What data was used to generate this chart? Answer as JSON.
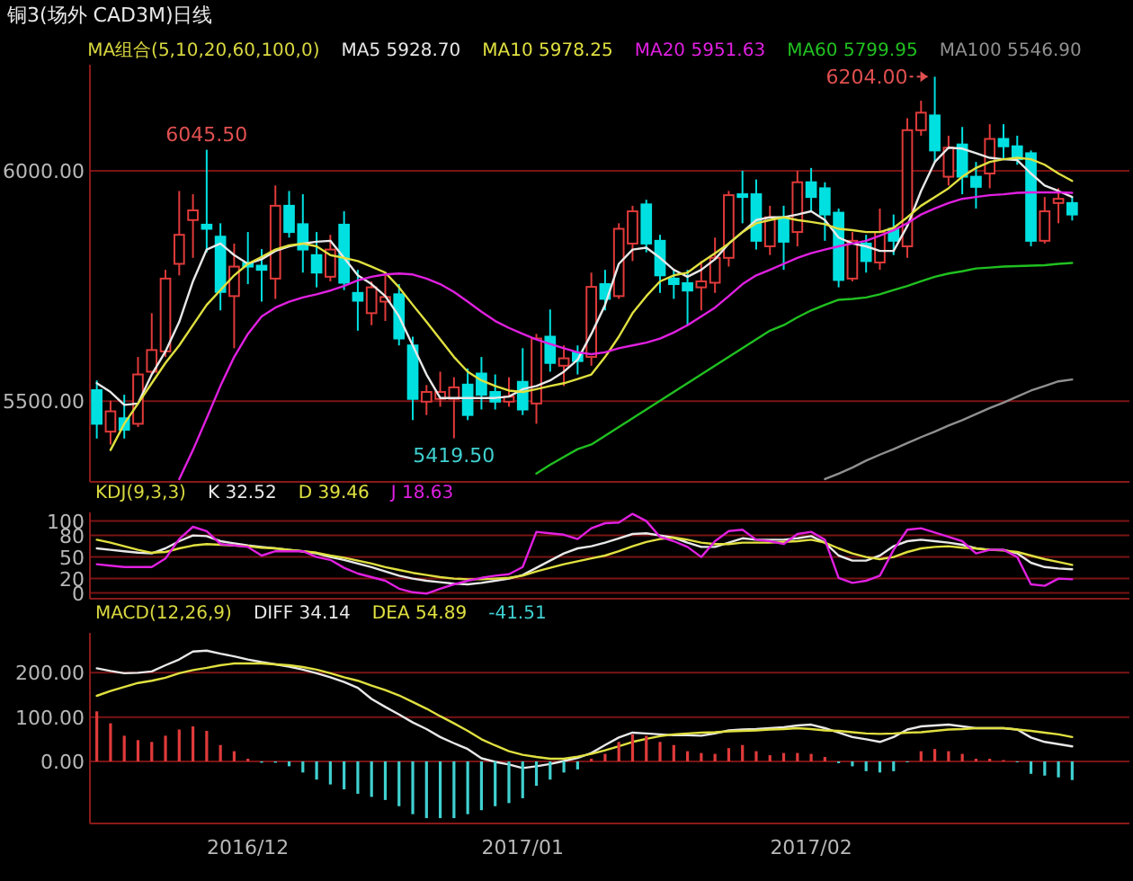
{
  "chart_data": [
    {
      "type": "candlestick",
      "title": "铜3(场外 CAD3M)日线",
      "legend_title": "MA组合(5,10,20,60,100,0)",
      "legend": "top",
      "grid": "y",
      "tick_labels": "y",
      "ylim": [
        5325,
        6230
      ],
      "yticks": [
        {
          "value": 5500,
          "label": "5500.00"
        },
        {
          "value": 6000,
          "label": "6000.00"
        }
      ],
      "categories": [
        null,
        null,
        null,
        null,
        null,
        null,
        null,
        null,
        null,
        null,
        null,
        null,
        null,
        null,
        null,
        null,
        null,
        null,
        null,
        null,
        null,
        null,
        null,
        null,
        null,
        null,
        null,
        null,
        null,
        null,
        null,
        null,
        null,
        null,
        null,
        null,
        null,
        null,
        null,
        null,
        null,
        null,
        null,
        null,
        null,
        null,
        null,
        null,
        null,
        null,
        null,
        null,
        null,
        null,
        null,
        null,
        null,
        null,
        null,
        null,
        null,
        null,
        null,
        null,
        null,
        null,
        null,
        null,
        null,
        null,
        null,
        null
      ],
      "ohlc": [
        [
          5524,
          5545,
          5419,
          5451
        ],
        [
          5434,
          5501,
          5406,
          5478
        ],
        [
          5463,
          5514,
          5419,
          5438
        ],
        [
          5451,
          5596,
          5444,
          5558
        ],
        [
          5564,
          5691,
          5558,
          5611
        ],
        [
          5608,
          5785,
          5596,
          5766
        ],
        [
          5798,
          5956,
          5773,
          5861
        ],
        [
          5893,
          5949,
          5811,
          5914
        ],
        [
          5883,
          6045.5,
          5823,
          5874
        ],
        [
          5857,
          5886,
          5697,
          5737
        ],
        [
          5728,
          5842,
          5615,
          5792
        ],
        [
          5800,
          5867,
          5754,
          5792
        ],
        [
          5794,
          5830,
          5716,
          5785
        ],
        [
          5766,
          5968,
          5722,
          5924
        ],
        [
          5924,
          5956,
          5855,
          5867
        ],
        [
          5884,
          5949,
          5779,
          5829
        ],
        [
          5817,
          5867,
          5747,
          5779
        ],
        [
          5770,
          5861,
          5760,
          5829
        ],
        [
          5883,
          5912,
          5741,
          5757
        ],
        [
          5735,
          5785,
          5653,
          5718
        ],
        [
          5691,
          5760,
          5665,
          5747
        ],
        [
          5716,
          5773,
          5674,
          5726
        ],
        [
          5732,
          5754,
          5621,
          5636
        ],
        [
          5621,
          5640,
          5459,
          5505
        ],
        [
          5499,
          5535,
          5470,
          5520
        ],
        [
          5505,
          5564,
          5488,
          5520
        ],
        [
          5505,
          5552,
          5419.5,
          5530
        ],
        [
          5536,
          5571,
          5459,
          5470
        ],
        [
          5560,
          5596,
          5482,
          5514
        ],
        [
          5520,
          5558,
          5482,
          5499
        ],
        [
          5499,
          5552,
          5488,
          5510
        ],
        [
          5542,
          5615,
          5470,
          5482
        ],
        [
          5495,
          5646,
          5451,
          5636
        ],
        [
          5640,
          5699,
          5564,
          5583
        ],
        [
          5577,
          5621,
          5533,
          5593
        ],
        [
          5606,
          5621,
          5558,
          5587
        ],
        [
          5596,
          5779,
          5577,
          5748
        ],
        [
          5754,
          5785,
          5697,
          5722
        ],
        [
          5728,
          5886,
          5722,
          5874
        ],
        [
          5842,
          5924,
          5804,
          5912
        ],
        [
          5927,
          5937,
          5823,
          5842
        ],
        [
          5848,
          5861,
          5735,
          5773
        ],
        [
          5766,
          5785,
          5722,
          5754
        ],
        [
          5756,
          5785,
          5665,
          5740
        ],
        [
          5747,
          5804,
          5697,
          5760
        ],
        [
          5757,
          5855,
          5735,
          5811
        ],
        [
          5811,
          5956,
          5792,
          5947
        ],
        [
          5949,
          6000,
          5886,
          5943
        ],
        [
          5949,
          5981,
          5829,
          5848
        ],
        [
          5836,
          5924,
          5817,
          5899
        ],
        [
          5899,
          5924,
          5785,
          5846
        ],
        [
          5867,
          6000,
          5836,
          5975
        ],
        [
          5975,
          6006,
          5912,
          5943
        ],
        [
          5962,
          5975,
          5848,
          5905
        ],
        [
          5909,
          5918,
          5747,
          5763
        ],
        [
          5766,
          5867,
          5760,
          5848
        ],
        [
          5842,
          5861,
          5779,
          5804
        ],
        [
          5801,
          5918,
          5785,
          5867
        ],
        [
          5874,
          5905,
          5817,
          5848
        ],
        [
          5836,
          6114,
          5811,
          6088
        ],
        [
          6088,
          6152,
          6076,
          6126
        ],
        [
          6120,
          6204,
          6019,
          6044
        ],
        [
          5987,
          6076,
          5968,
          6050
        ],
        [
          6057,
          6095,
          5949,
          5987
        ],
        [
          5987,
          6019,
          5918,
          5965
        ],
        [
          5994,
          6101,
          5962,
          6069
        ],
        [
          6069,
          6101,
          6025,
          6053
        ],
        [
          6053,
          6076,
          6013,
          6025
        ],
        [
          6038,
          6044,
          5836,
          5848
        ],
        [
          5848,
          5943,
          5842,
          5912
        ],
        [
          5930,
          5962,
          5886,
          5939
        ],
        [
          5930,
          5943,
          5892,
          5905
        ]
      ],
      "colors": [
        "#00e0e0",
        "#e03a3a",
        "#00e0e0",
        "#e03a3a",
        "#e03a3a",
        "#e03a3a",
        "#e03a3a",
        "#e03a3a",
        "#00e0e0",
        "#00e0e0",
        "#e03a3a",
        "#00e0e0",
        "#00e0e0",
        "#e03a3a",
        "#00e0e0",
        "#00e0e0",
        "#00e0e0",
        "#e03a3a",
        "#00e0e0",
        "#00e0e0",
        "#e03a3a",
        "#e03a3a",
        "#00e0e0",
        "#00e0e0",
        "#e03a3a",
        "#e03a3a",
        "#e03a3a",
        "#00e0e0",
        "#00e0e0",
        "#00e0e0",
        "#e03a3a",
        "#00e0e0",
        "#e03a3a",
        "#00e0e0",
        "#e03a3a",
        "#00e0e0",
        "#e03a3a",
        "#00e0e0",
        "#e03a3a",
        "#e03a3a",
        "#00e0e0",
        "#00e0e0",
        "#00e0e0",
        "#00e0e0",
        "#e03a3a",
        "#e03a3a",
        "#e03a3a",
        "#00e0e0",
        "#00e0e0",
        "#e03a3a",
        "#00e0e0",
        "#e03a3a",
        "#00e0e0",
        "#00e0e0",
        "#00e0e0",
        "#e03a3a",
        "#00e0e0",
        "#e03a3a",
        "#00e0e0",
        "#e03a3a",
        "#e03a3a",
        "#00e0e0",
        "#e03a3a",
        "#00e0e0",
        "#00e0e0",
        "#e03a3a",
        "#00e0e0",
        "#00e0e0",
        "#00e0e0",
        "#e03a3a",
        "#e03a3a",
        "#00e0e0"
      ],
      "series": [
        {
          "type": "line",
          "name": "MA5 5928.70",
          "color": "#e8e8e8",
          "values": [
            5539,
            5520,
            5492,
            5495,
            5558,
            5608,
            5672,
            5760,
            5829,
            5842,
            5817,
            5798,
            5808,
            5826,
            5836,
            5842,
            5846,
            5848,
            5811,
            5773,
            5754,
            5728,
            5684,
            5621,
            5558,
            5507,
            5507,
            5507,
            5507,
            5507,
            5510,
            5526,
            5533,
            5545,
            5564,
            5590,
            5646,
            5709,
            5798,
            5829,
            5833,
            5811,
            5785,
            5770,
            5785,
            5808,
            5842,
            5867,
            5893,
            5899,
            5899,
            5905,
            5912,
            5893,
            5855,
            5842,
            5836,
            5826,
            5826,
            5880,
            5956,
            6019,
            6050,
            6048,
            6038,
            6028,
            6025,
            6023,
            5994,
            5968,
            5956,
            5943
          ]
        },
        {
          "type": "line",
          "name": "MA10 5978.25",
          "color": "#e0e040",
          "values": [
            null,
            5394,
            5451,
            5495,
            5539,
            5583,
            5621,
            5665,
            5709,
            5741,
            5773,
            5798,
            5813,
            5829,
            5838,
            5842,
            5836,
            5817,
            5811,
            5804,
            5792,
            5779,
            5747,
            5709,
            5672,
            5634,
            5596,
            5564,
            5545,
            5533,
            5523,
            5520,
            5526,
            5533,
            5539,
            5548,
            5558,
            5596,
            5640,
            5691,
            5728,
            5760,
            5773,
            5779,
            5801,
            5821,
            5842,
            5867,
            5886,
            5893,
            5899,
            5893,
            5889,
            5884,
            5874,
            5871,
            5867,
            5867,
            5876,
            5899,
            5924,
            5943,
            5962,
            5987,
            6006,
            6019,
            6025,
            6028,
            6025,
            6013,
            5994,
            5978
          ]
        },
        {
          "type": "line",
          "name": "MA20 5951.63",
          "color": "#e020e0",
          "values": [
            null,
            null,
            null,
            null,
            null,
            null,
            5331,
            5394,
            5463,
            5533,
            5596,
            5646,
            5684,
            5703,
            5716,
            5725,
            5732,
            5740,
            5750,
            5762,
            5770,
            5775,
            5777,
            5775,
            5766,
            5754,
            5737,
            5716,
            5694,
            5674,
            5659,
            5646,
            5634,
            5624,
            5615,
            5606,
            5602,
            5606,
            5615,
            5621,
            5627,
            5636,
            5649,
            5665,
            5684,
            5703,
            5728,
            5754,
            5773,
            5785,
            5798,
            5811,
            5821,
            5829,
            5836,
            5842,
            5848,
            5859,
            5871,
            5886,
            5905,
            5918,
            5930,
            5939,
            5943,
            5947,
            5949,
            5952,
            5953,
            5953,
            5953,
            5952
          ]
        },
        {
          "type": "line",
          "name": "MA60 5799.95",
          "color": "#20c020",
          "values": [
            null,
            null,
            null,
            null,
            null,
            null,
            null,
            null,
            null,
            null,
            null,
            null,
            null,
            null,
            null,
            null,
            null,
            null,
            null,
            null,
            null,
            null,
            null,
            null,
            null,
            null,
            null,
            null,
            null,
            null,
            null,
            null,
            5343,
            5362,
            5379,
            5396,
            5406,
            5425,
            5444,
            5463,
            5482,
            5501,
            5520,
            5539,
            5558,
            5577,
            5596,
            5615,
            5634,
            5653,
            5665,
            5682,
            5697,
            5709,
            5720,
            5722,
            5725,
            5732,
            5741,
            5750,
            5760,
            5770,
            5777,
            5782,
            5788,
            5790,
            5792,
            5793,
            5794,
            5795,
            5798,
            5800
          ]
        },
        {
          "type": "line",
          "name": "MA100 5546.90",
          "color": "#909090",
          "values": [
            null,
            null,
            null,
            null,
            null,
            null,
            null,
            null,
            null,
            null,
            null,
            null,
            null,
            null,
            null,
            null,
            null,
            null,
            null,
            null,
            null,
            null,
            null,
            null,
            null,
            null,
            null,
            null,
            null,
            null,
            null,
            null,
            null,
            null,
            null,
            null,
            null,
            null,
            null,
            null,
            null,
            null,
            null,
            null,
            null,
            null,
            null,
            null,
            null,
            null,
            null,
            null,
            null,
            5331,
            5343,
            5356,
            5371,
            5384,
            5396,
            5409,
            5422,
            5434,
            5447,
            5459,
            5472,
            5485,
            5497,
            5510,
            5523,
            5533,
            5543,
            5547
          ]
        }
      ],
      "annotations": [
        {
          "text": "6045.50",
          "y": 6045.5
        },
        {
          "text": "5419.50",
          "y": 5419.5
        },
        "6204.00"
      ]
    },
    {
      "type": "line",
      "legend_title": "KDJ(9,3,3)",
      "legend": "top left",
      "grid": "y",
      "tick_labels": "y",
      "ylim": [
        -8,
        112
      ],
      "yticks": [
        0,
        20,
        50,
        80,
        100
      ],
      "categories": [
        null,
        null,
        null,
        null,
        null,
        null,
        null,
        null,
        null,
        null,
        null,
        null,
        null,
        null,
        null,
        null,
        null,
        null,
        null,
        null,
        null,
        null,
        null,
        null,
        null,
        null,
        null,
        null,
        null,
        null,
        null,
        null,
        null,
        null,
        null,
        null,
        null,
        null,
        null,
        null,
        null,
        null,
        null,
        null,
        null,
        null,
        null,
        null,
        null,
        null,
        null,
        null,
        null,
        null,
        null,
        null,
        null,
        null,
        null,
        null,
        null,
        null,
        null,
        null,
        null,
        null,
        null,
        null,
        null,
        null,
        null,
        null
      ],
      "series": [
        {
          "name": "K  32.52",
          "color": "#e8e8e8",
          "values": [
            62,
            60,
            58,
            56,
            55,
            62,
            72,
            80,
            79,
            72,
            69,
            66,
            64,
            62,
            60,
            58,
            55,
            50,
            46,
            41,
            36,
            30,
            24,
            20,
            17,
            15,
            13,
            12,
            14,
            17,
            20,
            25,
            35,
            45,
            55,
            62,
            65,
            70,
            76,
            82,
            83,
            80,
            77,
            70,
            64,
            64,
            70,
            76,
            74,
            74,
            74,
            76,
            79,
            70,
            52,
            45,
            45,
            52,
            65,
            72,
            74,
            72,
            70,
            67,
            62,
            60,
            60,
            55,
            42,
            36,
            34,
            33
          ]
        },
        {
          "name": "D  39.46",
          "color": "#e0e040",
          "values": [
            74,
            70,
            65,
            60,
            56,
            57,
            62,
            66,
            68,
            67,
            66,
            65,
            63,
            62,
            60,
            58,
            56,
            52,
            49,
            45,
            41,
            36,
            32,
            28,
            25,
            22,
            20,
            19,
            19,
            20,
            21,
            24,
            30,
            35,
            40,
            44,
            48,
            52,
            58,
            65,
            71,
            75,
            77,
            74,
            70,
            68,
            68,
            70,
            70,
            70,
            71,
            72,
            74,
            70,
            62,
            55,
            50,
            47,
            50,
            57,
            62,
            64,
            65,
            63,
            62,
            60,
            59,
            57,
            52,
            47,
            43,
            39
          ]
        },
        {
          "name": "J  18.63",
          "color": "#e020e0",
          "values": [
            40,
            38,
            36,
            36,
            36,
            48,
            75,
            92,
            86,
            68,
            66,
            64,
            52,
            58,
            58,
            58,
            50,
            46,
            35,
            27,
            22,
            17,
            6,
            1,
            -1,
            6,
            12,
            17,
            21,
            24,
            26,
            36,
            85,
            83,
            81,
            75,
            90,
            97,
            98,
            110,
            100,
            78,
            72,
            64,
            50,
            72,
            86,
            88,
            74,
            72,
            68,
            82,
            85,
            74,
            21,
            14,
            17,
            24,
            60,
            88,
            90,
            84,
            78,
            72,
            55,
            60,
            60,
            50,
            12,
            10,
            20,
            19
          ]
        }
      ]
    },
    {
      "type": "line",
      "legend_title": "MACD(12,26,9)",
      "legend": "top left",
      "grid": "y",
      "ylim": [
        -140,
        290
      ],
      "yticks": [
        {
          "value": 0,
          "label": "0.00"
        },
        {
          "value": 100,
          "label": "100.00"
        },
        {
          "value": 200,
          "label": "200.00"
        }
      ],
      "categories": [
        null,
        null,
        null,
        null,
        null,
        null,
        null,
        null,
        null,
        null,
        null,
        "2016/12",
        null,
        null,
        null,
        null,
        null,
        null,
        null,
        null,
        null,
        null,
        null,
        null,
        null,
        null,
        null,
        null,
        null,
        null,
        null,
        "2017/01",
        null,
        null,
        null,
        null,
        null,
        null,
        null,
        null,
        null,
        null,
        null,
        null,
        null,
        null,
        null,
        null,
        null,
        null,
        null,
        null,
        "2017/02",
        null,
        null,
        null,
        null,
        null,
        null,
        null,
        null,
        null,
        null,
        null,
        null,
        null,
        null,
        null,
        null,
        null,
        null,
        null
      ],
      "series": [
        {
          "name": "DIFF 34.14",
          "color": "#e8e8e8",
          "values": [
            210,
            204,
            199,
            200,
            203,
            217,
            230,
            248,
            250,
            243,
            237,
            230,
            224,
            219,
            214,
            207,
            199,
            190,
            179,
            166,
            141,
            123,
            106,
            88,
            73,
            55,
            41,
            28,
            7,
            -1,
            -7,
            -15,
            -11,
            -6,
            1,
            8,
            19,
            37,
            54,
            65,
            63,
            61,
            59,
            59,
            58,
            63,
            70,
            72,
            73,
            75,
            77,
            81,
            83,
            75,
            65,
            55,
            50,
            44,
            55,
            72,
            79,
            81,
            83,
            79,
            75,
            75,
            75,
            72,
            54,
            44,
            39,
            34
          ]
        },
        {
          "name": "DEA 54.89",
          "color": "#e0e040",
          "values": [
            148,
            159,
            168,
            177,
            182,
            189,
            199,
            206,
            211,
            217,
            221,
            221,
            221,
            219,
            217,
            213,
            207,
            199,
            190,
            182,
            171,
            161,
            149,
            134,
            119,
            102,
            86,
            69,
            50,
            36,
            23,
            15,
            10,
            6,
            6,
            11,
            17,
            25,
            34,
            44,
            51,
            57,
            61,
            63,
            65,
            66,
            68,
            69,
            70,
            72,
            73,
            75,
            73,
            70,
            69,
            66,
            63,
            62,
            63,
            65,
            66,
            69,
            72,
            73,
            75,
            75,
            75,
            72,
            69,
            65,
            61,
            55
          ]
        },
        {
          "type": "bar",
          "name": "-41.51",
          "color": "#40d0d0",
          "values": [
            113,
            86,
            58,
            48,
            44,
            58,
            72,
            79,
            69,
            37,
            23,
            6,
            -3,
            -3,
            -11,
            -25,
            -41,
            -52,
            -63,
            -73,
            -80,
            -87,
            -101,
            -119,
            -128,
            -128,
            -128,
            -119,
            -110,
            -101,
            -94,
            -83,
            -55,
            -41,
            -25,
            -18,
            6,
            17,
            44,
            61,
            58,
            44,
            37,
            23,
            19,
            17,
            30,
            37,
            23,
            14,
            19,
            19,
            17,
            10,
            -4,
            -11,
            -22,
            -25,
            -22,
            0,
            23,
            28,
            23,
            17,
            6,
            6,
            3,
            0,
            -28,
            -32,
            -36,
            -42
          ],
          "colors": [
            "#e03a3a",
            "#e03a3a",
            "#e03a3a",
            "#e03a3a",
            "#e03a3a",
            "#e03a3a",
            "#e03a3a",
            "#e03a3a",
            "#e03a3a",
            "#e03a3a",
            "#e03a3a",
            "#e03a3a",
            "#40d0d0",
            "#40d0d0",
            "#40d0d0",
            "#40d0d0",
            "#40d0d0",
            "#40d0d0",
            "#40d0d0",
            "#40d0d0",
            "#40d0d0",
            "#40d0d0",
            "#40d0d0",
            "#40d0d0",
            "#40d0d0",
            "#40d0d0",
            "#40d0d0",
            "#40d0d0",
            "#40d0d0",
            "#40d0d0",
            "#40d0d0",
            "#40d0d0",
            "#40d0d0",
            "#40d0d0",
            "#40d0d0",
            "#40d0d0",
            "#e03a3a",
            "#e03a3a",
            "#e03a3a",
            "#e03a3a",
            "#e03a3a",
            "#e03a3a",
            "#e03a3a",
            "#e03a3a",
            "#e03a3a",
            "#e03a3a",
            "#e03a3a",
            "#e03a3a",
            "#e03a3a",
            "#e03a3a",
            "#e03a3a",
            "#e03a3a",
            "#e03a3a",
            "#e03a3a",
            "#40d0d0",
            "#40d0d0",
            "#40d0d0",
            "#40d0d0",
            "#40d0d0",
            "#40d0d0",
            "#e03a3a",
            "#e03a3a",
            "#e03a3a",
            "#e03a3a",
            "#e03a3a",
            "#e03a3a",
            "#e03a3a",
            "#40d0d0",
            "#40d0d0",
            "#40d0d0",
            "#40d0d0",
            "#40d0d0"
          ]
        }
      ]
    }
  ]
}
